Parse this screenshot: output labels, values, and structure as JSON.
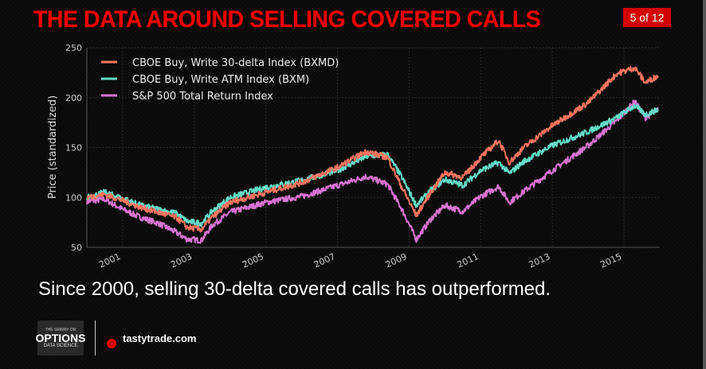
{
  "slide": {
    "title": "THE DATA AROUND SELLING COVERED CALLS",
    "page_indicator": "5 of 12",
    "caption": "Since 2000, selling 30-delta covered calls has outperformed.",
    "footer": {
      "logo_line1": "THE SKINNY ON",
      "logo_line2": "OPTIONS",
      "logo_line3": "DATA SCIENCE",
      "site": "tastytrade.com"
    },
    "colors": {
      "title": "#ee0000",
      "badge": "#d40000"
    }
  },
  "chart_data": {
    "type": "line",
    "title": "",
    "xlabel": "",
    "ylabel": "Price (standardized)",
    "xlim": [
      2000,
      2016
    ],
    "ylim": [
      50,
      250
    ],
    "yticks": [
      "50",
      "100",
      "150",
      "200",
      "250"
    ],
    "xticks": [
      "2001",
      "2003",
      "2005",
      "2007",
      "2009",
      "2011",
      "2013",
      "2015"
    ],
    "grid": true,
    "legend_position": "top-left",
    "x": [
      2000,
      2000.5,
      2001,
      2001.5,
      2002,
      2002.5,
      2002.8,
      2003.2,
      2003.5,
      2004,
      2005,
      2006,
      2007,
      2007.8,
      2008.4,
      2008.8,
      2009.2,
      2009.6,
      2010,
      2010.5,
      2011,
      2011.5,
      2011.8,
      2012.2,
      2013,
      2014,
      2014.8,
      2015.3,
      2015.6,
      2015.95
    ],
    "series": [
      {
        "name": "CBOE Buy, Write 30-delta Index (BXMD)",
        "color": "#fa7560",
        "values": [
          100,
          103,
          97,
          90,
          85,
          80,
          70,
          68,
          80,
          95,
          105,
          115,
          130,
          146,
          140,
          110,
          82,
          105,
          125,
          120,
          140,
          157,
          135,
          150,
          172,
          195,
          224,
          230,
          215,
          222
        ]
      },
      {
        "name": "CBOE Buy, Write ATM Index (BXM)",
        "color": "#64dcc8",
        "values": [
          100,
          105,
          99,
          92,
          88,
          84,
          76,
          74,
          86,
          100,
          110,
          117,
          127,
          141,
          143,
          120,
          92,
          107,
          118,
          112,
          127,
          135,
          124,
          136,
          152,
          166,
          180,
          192,
          183,
          188
        ]
      },
      {
        "name": "S&P 500 Total Return Index",
        "color": "#d873d2",
        "values": [
          96,
          98,
          88,
          80,
          74,
          65,
          58,
          57,
          72,
          85,
          95,
          101,
          112,
          121,
          113,
          88,
          58,
          78,
          92,
          86,
          101,
          111,
          95,
          106,
          127,
          152,
          177,
          196,
          180,
          188
        ]
      }
    ]
  }
}
